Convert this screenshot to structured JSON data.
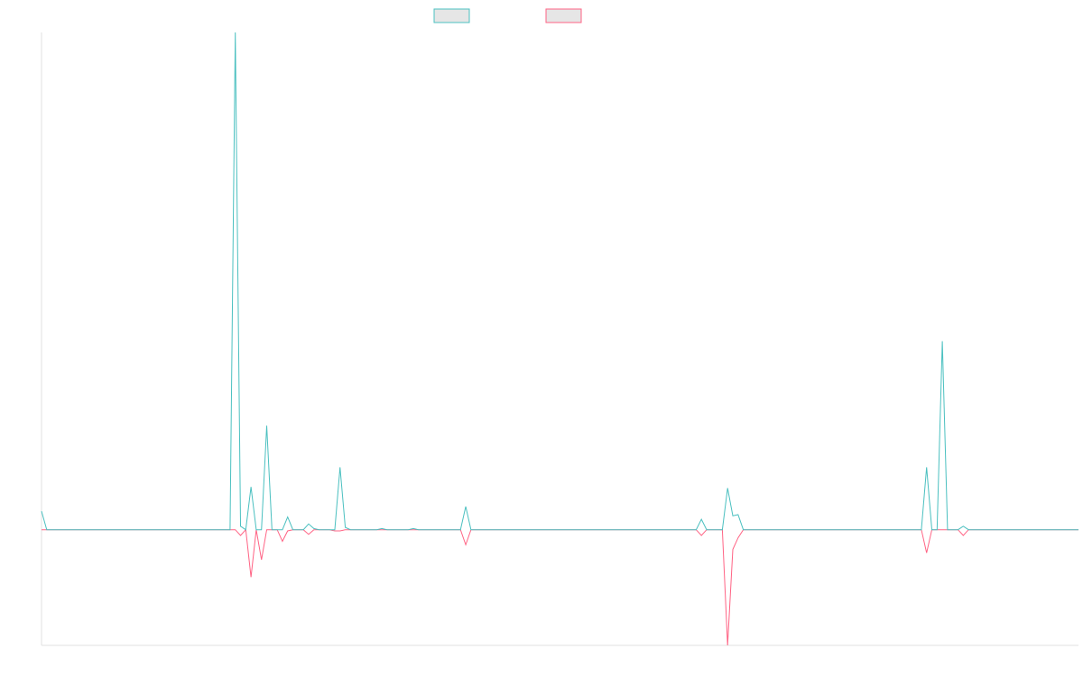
{
  "chart_data": {
    "type": "line",
    "title": "",
    "xlabel": "",
    "ylabel": "",
    "grid": false,
    "legend_placement": "top-center",
    "y_range": [
      -100,
      430
    ],
    "x_count": 199,
    "series": [
      {
        "name": "",
        "color": "#4bc0c0",
        "fill": "#e6e6e6",
        "points": [
          [
            0,
            16
          ],
          [
            1,
            0
          ],
          [
            36,
            0
          ],
          [
            37,
            430
          ],
          [
            38,
            3
          ],
          [
            39,
            0
          ],
          [
            40,
            37
          ],
          [
            41,
            0
          ],
          [
            42,
            0
          ],
          [
            43,
            90
          ],
          [
            44,
            0
          ],
          [
            45,
            0
          ],
          [
            46,
            0
          ],
          [
            47,
            11
          ],
          [
            48,
            0
          ],
          [
            50,
            0
          ],
          [
            51,
            5
          ],
          [
            52,
            1
          ],
          [
            53,
            0
          ],
          [
            56,
            0
          ],
          [
            57,
            54
          ],
          [
            58,
            2
          ],
          [
            59,
            0
          ],
          [
            64,
            0
          ],
          [
            65,
            1
          ],
          [
            66,
            0
          ],
          [
            70,
            0
          ],
          [
            71,
            1
          ],
          [
            72,
            0
          ],
          [
            80,
            0
          ],
          [
            81,
            20
          ],
          [
            82,
            0
          ],
          [
            125,
            0
          ],
          [
            126,
            9
          ],
          [
            127,
            0
          ],
          [
            130,
            0
          ],
          [
            131,
            36
          ],
          [
            132,
            12
          ],
          [
            133,
            13
          ],
          [
            134,
            0
          ],
          [
            168,
            0
          ],
          [
            169,
            54
          ],
          [
            170,
            0
          ],
          [
            171,
            0
          ],
          [
            172,
            163
          ],
          [
            173,
            0
          ],
          [
            175,
            0
          ],
          [
            176,
            3
          ],
          [
            177,
            0
          ],
          [
            198,
            0
          ]
        ]
      },
      {
        "name": "",
        "color": "#ff6384",
        "fill": "#e6e6e6",
        "points": [
          [
            0,
            0
          ],
          [
            36,
            0
          ],
          [
            37,
            0
          ],
          [
            38,
            -5
          ],
          [
            39,
            0
          ],
          [
            40,
            -41
          ],
          [
            41,
            0
          ],
          [
            42,
            -26
          ],
          [
            43,
            0
          ],
          [
            45,
            0
          ],
          [
            46,
            -10
          ],
          [
            47,
            -1
          ],
          [
            48,
            0
          ],
          [
            50,
            0
          ],
          [
            51,
            -4
          ],
          [
            52,
            0
          ],
          [
            55,
            0
          ],
          [
            56,
            -1
          ],
          [
            57,
            -1
          ],
          [
            58,
            0
          ],
          [
            80,
            0
          ],
          [
            81,
            -13
          ],
          [
            82,
            0
          ],
          [
            125,
            0
          ],
          [
            126,
            -5
          ],
          [
            127,
            0
          ],
          [
            130,
            0
          ],
          [
            131,
            -100
          ],
          [
            132,
            -17
          ],
          [
            133,
            -7
          ],
          [
            134,
            0
          ],
          [
            168,
            0
          ],
          [
            169,
            -20
          ],
          [
            170,
            0
          ],
          [
            175,
            0
          ],
          [
            176,
            -5
          ],
          [
            177,
            0
          ],
          [
            198,
            0
          ]
        ]
      }
    ]
  }
}
